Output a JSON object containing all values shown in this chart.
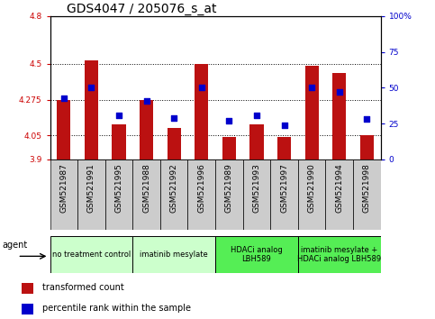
{
  "title": "GDS4047 / 205076_s_at",
  "samples": [
    "GSM521987",
    "GSM521991",
    "GSM521995",
    "GSM521988",
    "GSM521992",
    "GSM521996",
    "GSM521989",
    "GSM521993",
    "GSM521997",
    "GSM521990",
    "GSM521994",
    "GSM521998"
  ],
  "transformed_counts": [
    4.275,
    4.52,
    4.12,
    4.275,
    4.1,
    4.5,
    4.04,
    4.12,
    4.04,
    4.49,
    4.44,
    4.05
  ],
  "percentile_ranks": [
    43,
    50,
    31,
    41,
    29,
    50,
    27,
    31,
    24,
    50,
    47,
    28
  ],
  "y_min": 3.9,
  "y_max": 4.8,
  "y_ticks": [
    3.9,
    4.05,
    4.275,
    4.5,
    4.8
  ],
  "y_tick_labels": [
    "3.9",
    "4.05",
    "4.275",
    "4.5",
    "4.8"
  ],
  "right_y_ticks": [
    0,
    25,
    50,
    75,
    100
  ],
  "right_y_tick_labels": [
    "0",
    "25",
    "50",
    "75",
    "100%"
  ],
  "dotted_lines": [
    4.05,
    4.275,
    4.5
  ],
  "bar_color": "#bb1111",
  "dot_color": "#0000cc",
  "agent_groups": [
    {
      "label": "no treatment control",
      "start": 0,
      "end": 3,
      "color": "#ccffcc"
    },
    {
      "label": "imatinib mesylate",
      "start": 3,
      "end": 6,
      "color": "#ccffcc"
    },
    {
      "label": "HDACi analog\nLBH589",
      "start": 6,
      "end": 9,
      "color": "#55ee55"
    },
    {
      "label": "imatinib mesylate +\nHDACi analog LBH589",
      "start": 9,
      "end": 12,
      "color": "#55ee55"
    }
  ],
  "bar_width": 0.5,
  "dot_size": 25,
  "dot_marker": "s",
  "title_fontsize": 10,
  "tick_label_fontsize": 6.5,
  "sample_label_fontsize": 6.5,
  "axis_label_color_red": "#cc0000",
  "axis_label_color_blue": "#0000cc",
  "legend_items": [
    {
      "label": "transformed count",
      "color": "#bb1111"
    },
    {
      "label": "percentile rank within the sample",
      "color": "#0000cc"
    }
  ],
  "background_plot": "#ffffff",
  "spine_color": "#000000",
  "xtick_bg": "#cccccc"
}
